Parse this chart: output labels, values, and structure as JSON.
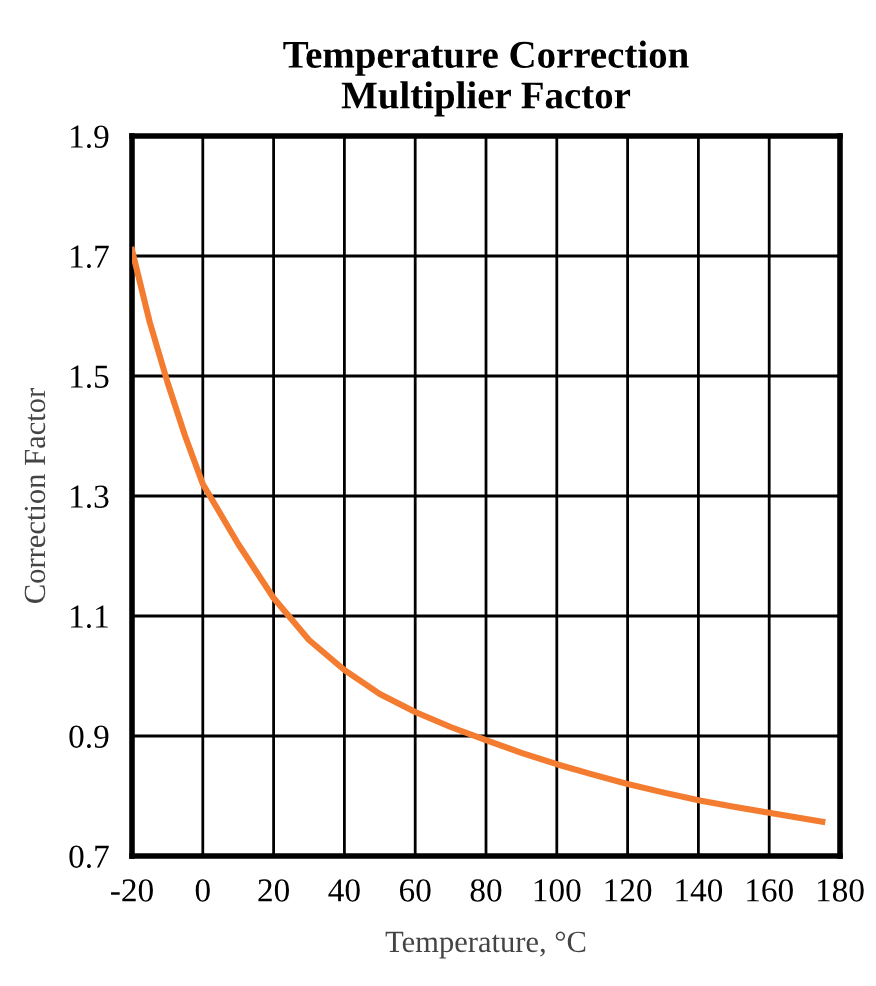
{
  "chart_data": {
    "type": "line",
    "title": "Temperature Correction\nMultiplier Factor",
    "xlabel": "Temperature, °C",
    "ylabel": "Correction Factor",
    "x": [
      -20,
      -15,
      -10,
      -5,
      0,
      5,
      10,
      20,
      30,
      40,
      50,
      60,
      70,
      80,
      90,
      100,
      110,
      120,
      130,
      140,
      150,
      160,
      175
    ],
    "series": [
      {
        "color": "#f47c30",
        "values": [
          1.71,
          1.59,
          1.49,
          1.4,
          1.32,
          1.27,
          1.22,
          1.13,
          1.06,
          1.01,
          0.97,
          0.94,
          0.915,
          0.893,
          0.872,
          0.853,
          0.836,
          0.82,
          0.806,
          0.793,
          0.782,
          0.772,
          0.757
        ]
      }
    ],
    "xlim": [
      -20,
      180
    ],
    "xticks": [
      -20,
      0,
      20,
      40,
      60,
      80,
      100,
      120,
      140,
      160,
      180
    ],
    "ylim": [
      0.7,
      1.9
    ],
    "yticks": [
      0.7,
      0.9,
      1.1,
      1.3,
      1.5,
      1.7,
      1.9
    ],
    "grid": true,
    "legend": false,
    "marker": "none",
    "line_style": "solid"
  }
}
